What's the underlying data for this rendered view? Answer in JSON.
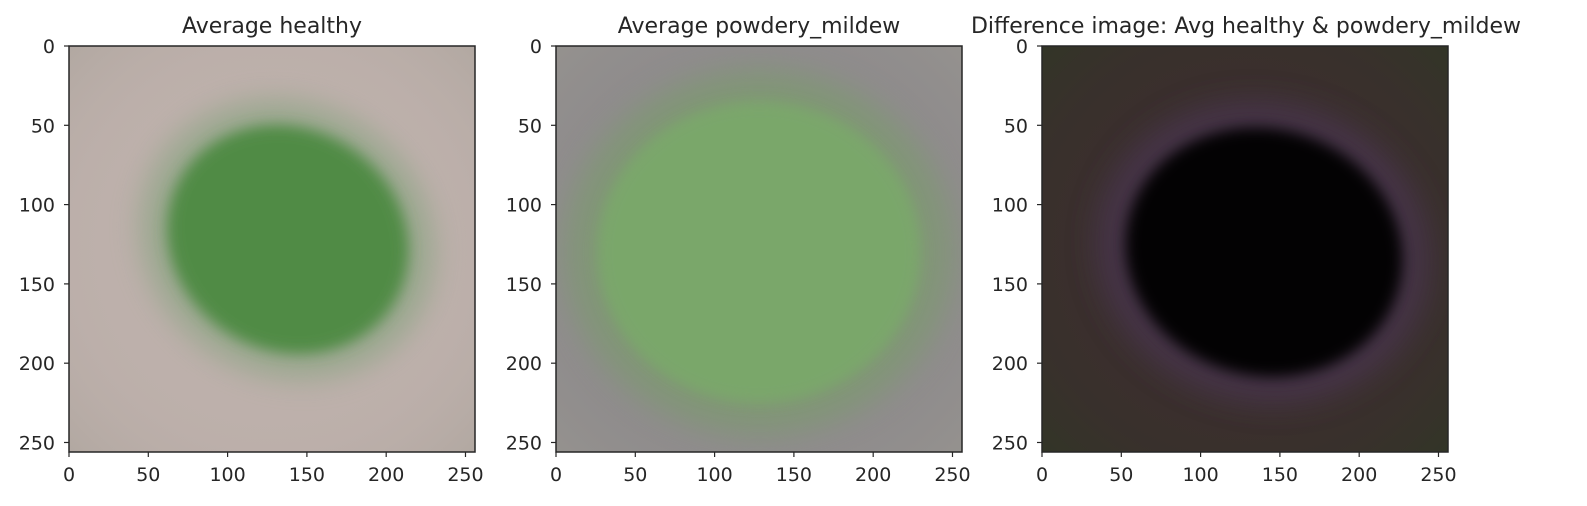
{
  "chart_data": [
    {
      "type": "image",
      "title": "Average healthy",
      "xlim": [
        0,
        256
      ],
      "ylim": [
        256,
        0
      ],
      "xticks": [
        0,
        50,
        100,
        150,
        200,
        250
      ],
      "yticks": [
        0,
        50,
        100,
        150,
        200,
        250
      ],
      "grid": false,
      "colors": {
        "background": "#bdb0ab",
        "edge": "#a9a29a",
        "halo": "#8ea585",
        "core": "#4e8a42"
      },
      "blob": {
        "cx": 138,
        "cy": 122,
        "rx": 78,
        "ry": 70,
        "rotation": 30
      }
    },
    {
      "type": "image",
      "title": "Average powdery_mildew",
      "xlim": [
        0,
        256
      ],
      "ylim": [
        256,
        0
      ],
      "xticks": [
        0,
        50,
        100,
        150,
        200,
        250
      ],
      "yticks": [
        0,
        50,
        100,
        150,
        200,
        250
      ],
      "grid": false,
      "colors": {
        "background": "#8e8b8c",
        "edge": "#9a9790",
        "halo": "#7d9a70",
        "core": "#7aa86a"
      },
      "blob": {
        "cx": 128,
        "cy": 130,
        "rx": 102,
        "ry": 95,
        "rotation": 0
      }
    },
    {
      "type": "image",
      "title": "Difference image: Avg healthy & powdery_mildew",
      "xlim": [
        0,
        256
      ],
      "ylim": [
        256,
        0
      ],
      "xticks": [
        0,
        50,
        100,
        150,
        200,
        250
      ],
      "yticks": [
        0,
        50,
        100,
        150,
        200,
        250
      ],
      "grid": false,
      "colors": {
        "background": "#3a2f2d",
        "edge": "#2c3a22",
        "halo": "#4a3550",
        "core": "#060606"
      },
      "blob": {
        "cx": 140,
        "cy": 130,
        "rx": 88,
        "ry": 78,
        "rotation": 15
      }
    }
  ]
}
